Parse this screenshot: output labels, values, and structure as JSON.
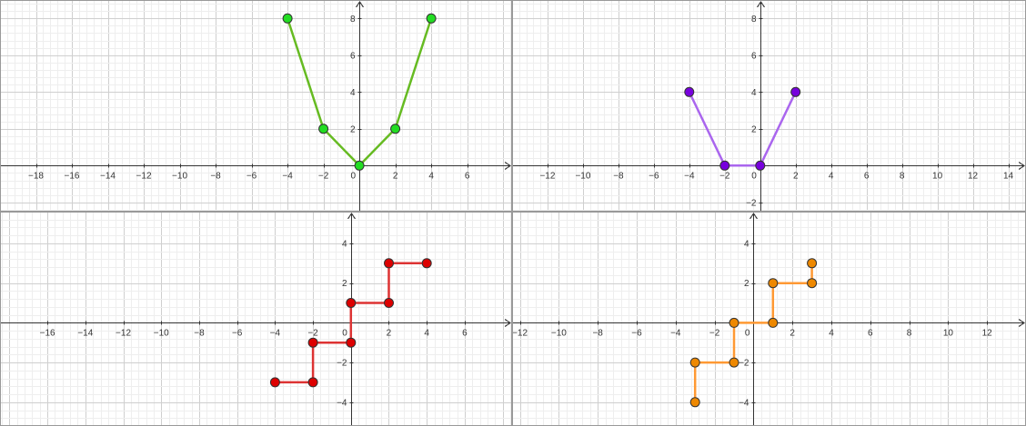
{
  "chart_data": [
    {
      "type": "line",
      "panel": "top-left",
      "grid": true,
      "xlim": [
        -20,
        8.5
      ],
      "ylim": [
        -2.5,
        9
      ],
      "x_ticks": [
        -18,
        -16,
        -14,
        -12,
        -10,
        -8,
        -6,
        -4,
        -2,
        0,
        2,
        4,
        6
      ],
      "y_ticks": [
        2,
        4,
        6,
        8
      ],
      "x_tick_labels": [
        "−18",
        "−16",
        "−14",
        "−12",
        "−10",
        "−8",
        "−6",
        "−4",
        "−2",
        "0",
        "2",
        "4",
        "6"
      ],
      "y_tick_labels": [
        "2",
        "4",
        "6",
        "8"
      ],
      "series": [
        {
          "color": "#66bb22",
          "marker_color": "#22dd22",
          "points": [
            [
              -4,
              8
            ],
            [
              -2,
              2
            ],
            [
              0,
              0
            ],
            [
              2,
              2
            ],
            [
              4,
              8
            ]
          ]
        }
      ]
    },
    {
      "type": "line",
      "panel": "top-right",
      "grid": true,
      "xlim": [
        -14,
        15
      ],
      "ylim": [
        -2.5,
        9
      ],
      "x_ticks": [
        -12,
        -10,
        -8,
        -6,
        -4,
        -2,
        0,
        2,
        4,
        6,
        8,
        10,
        12,
        14
      ],
      "y_ticks": [
        -2,
        2,
        4,
        6,
        8
      ],
      "x_tick_labels": [
        "−12",
        "−10",
        "−8",
        "−6",
        "−4",
        "−2",
        "0",
        "2",
        "4",
        "6",
        "8",
        "10",
        "12",
        "14"
      ],
      "y_tick_labels": [
        "−2",
        "2",
        "4",
        "6",
        "8"
      ],
      "series": [
        {
          "color": "#aa66ee",
          "marker_color": "#7700dd",
          "points": [
            [
              -4,
              4
            ],
            [
              -2,
              0
            ],
            [
              0,
              0
            ],
            [
              2,
              4
            ]
          ]
        }
      ]
    },
    {
      "type": "line",
      "panel": "bottom-left",
      "grid": true,
      "xlim": [
        -18.5,
        8.5
      ],
      "ylim": [
        -5.2,
        5.6
      ],
      "x_ticks": [
        -16,
        -14,
        -12,
        -10,
        -8,
        -6,
        -4,
        -2,
        0,
        2,
        4,
        6
      ],
      "y_ticks": [
        -4,
        -2,
        2,
        4
      ],
      "x_tick_labels": [
        "−16",
        "−14",
        "−12",
        "−10",
        "−8",
        "−6",
        "−4",
        "−2",
        "0",
        "2",
        "4",
        "6"
      ],
      "y_tick_labels": [
        "−4",
        "−2",
        "2",
        "4"
      ],
      "series": [
        {
          "color": "#dd3333",
          "marker_color": "#dd0000",
          "points": [
            [
              -4,
              -3
            ],
            [
              -2,
              -3
            ],
            [
              -2,
              -1
            ],
            [
              0,
              -1
            ],
            [
              0,
              1
            ],
            [
              2,
              1
            ],
            [
              2,
              3
            ],
            [
              4,
              3
            ]
          ]
        }
      ]
    },
    {
      "type": "line",
      "panel": "bottom-right",
      "grid": true,
      "xlim": [
        -12.4,
        14
      ],
      "ylim": [
        -5.2,
        5.6
      ],
      "x_ticks": [
        -12,
        -10,
        -8,
        -6,
        -4,
        -2,
        0,
        2,
        4,
        6,
        8,
        10,
        12
      ],
      "y_ticks": [
        -4,
        -2,
        2,
        4
      ],
      "x_tick_labels": [
        "−12",
        "−10",
        "−8",
        "−6",
        "−4",
        "−2",
        "0",
        "2",
        "4",
        "6",
        "8",
        "10",
        "12"
      ],
      "y_tick_labels": [
        "−4",
        "−2",
        "2",
        "4"
      ],
      "series": [
        {
          "color": "#ff9933",
          "marker_color": "#ee8800",
          "points": [
            [
              -3,
              -4
            ],
            [
              -3,
              -2
            ],
            [
              -1,
              -2
            ],
            [
              -1,
              0
            ],
            [
              1,
              0
            ],
            [
              1,
              2
            ],
            [
              3,
              2
            ],
            [
              3,
              3
            ]
          ]
        }
      ]
    }
  ]
}
